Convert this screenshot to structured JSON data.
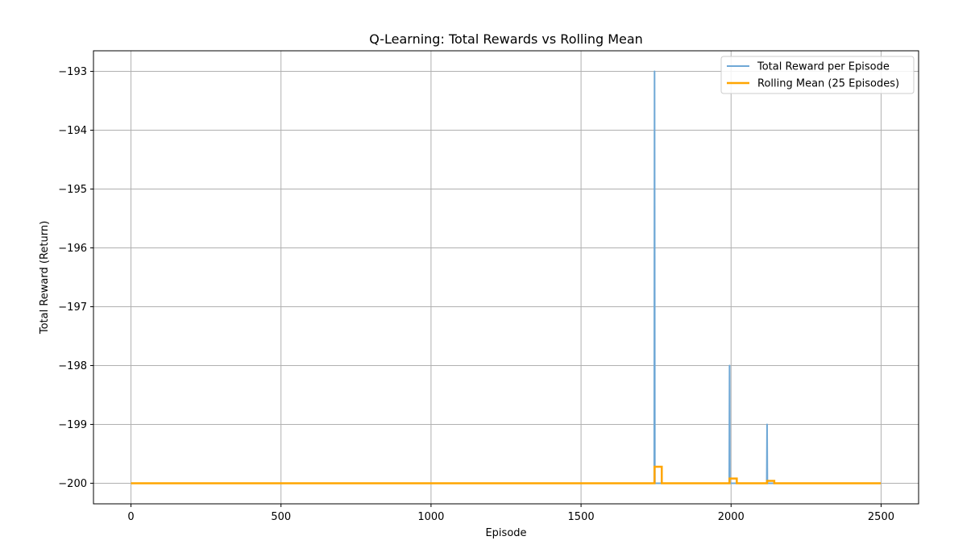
{
  "chart_data": {
    "type": "line",
    "title": "Q-Learning: Total Rewards vs Rolling Mean",
    "xlabel": "Episode",
    "ylabel": "Total Reward (Return)",
    "xlim": [
      -125,
      2625
    ],
    "ylim": [
      -200.35,
      -192.65
    ],
    "xticks": [
      0,
      500,
      1000,
      1500,
      2000,
      2500
    ],
    "yticks": [
      -193,
      -194,
      -195,
      -196,
      -197,
      -198,
      -199,
      -200
    ],
    "ytick_labels": [
      "−193",
      "−194",
      "−195",
      "−196",
      "−197",
      "−198",
      "−199",
      "−200"
    ],
    "grid": true,
    "legend_position": "top-right",
    "series": [
      {
        "name": "Total Reward per Episode",
        "color": "#6fa8d6",
        "baseline": -200,
        "x_range": [
          0,
          2499
        ],
        "spikes": [
          {
            "x": 1745,
            "y": -193
          },
          {
            "x": 1995,
            "y": -198
          },
          {
            "x": 2120,
            "y": -199
          }
        ]
      },
      {
        "name": "Rolling Mean (25 Episodes)",
        "color": "#ffa500",
        "points": [
          [
            0,
            -200
          ],
          [
            1745,
            -200
          ],
          [
            1745,
            -199.72
          ],
          [
            1769,
            -199.72
          ],
          [
            1769,
            -200
          ],
          [
            1995,
            -200
          ],
          [
            1995,
            -199.92
          ],
          [
            2019,
            -199.92
          ],
          [
            2019,
            -200
          ],
          [
            2120,
            -200
          ],
          [
            2120,
            -199.96
          ],
          [
            2144,
            -199.96
          ],
          [
            2144,
            -200
          ],
          [
            2499,
            -200
          ]
        ]
      }
    ]
  }
}
